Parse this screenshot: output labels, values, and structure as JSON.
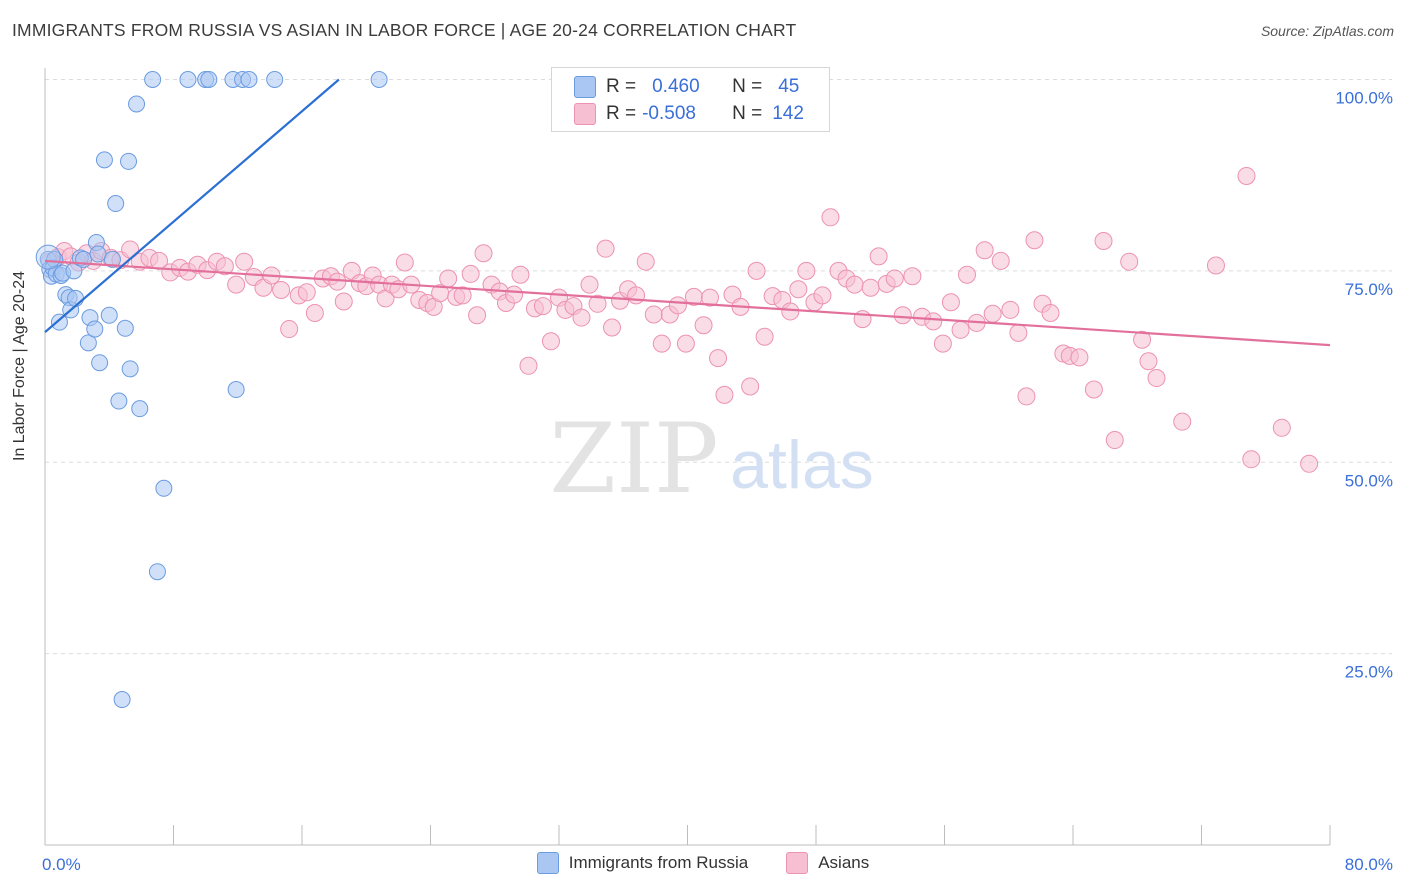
{
  "title": "IMMIGRANTS FROM RUSSIA VS ASIAN IN LABOR FORCE | AGE 20-24 CORRELATION CHART",
  "source": "Source: ZipAtlas.com",
  "watermark": {
    "zip": "ZIP",
    "atlas": "atlas"
  },
  "colors": {
    "blue_fill": "#a9c7f2",
    "blue_stroke": "#6a9be0",
    "blue_line": "#2a6fd4",
    "pink_fill": "#f6bfd2",
    "pink_stroke": "#ec92b2",
    "pink_line": "#e2709a",
    "axis_label": "#3a6fd8",
    "grid": "#dcdcdc"
  },
  "legend": {
    "r_label": "R =",
    "n_label": "N =",
    "rows": [
      {
        "series": "Immigrants from Russia",
        "r": "0.460",
        "n": "45",
        "color": "#a9c7f2",
        "stroke": "#6a9be0"
      },
      {
        "series": "Asians",
        "r": "-0.508",
        "n": "142",
        "color": "#f6bfd2",
        "stroke": "#ec92b2"
      }
    ]
  },
  "bottom_legend": [
    {
      "label": "Immigrants from Russia",
      "color": "#a9c7f2",
      "stroke": "#6a9be0"
    },
    {
      "label": "Asians",
      "color": "#f6bfd2",
      "stroke": "#ec92b2"
    }
  ],
  "chart_data": {
    "type": "scatter",
    "title": "IMMIGRANTS FROM RUSSIA VS ASIAN IN LABOR FORCE | AGE 20-24 CORRELATION CHART",
    "xlabel": "",
    "ylabel": "In Labor Force | Age 20-24",
    "xlim": [
      0,
      80
    ],
    "ylim": [
      0,
      102
    ],
    "x_tick_labels": [
      "0.0%",
      "80.0%"
    ],
    "y_ticks": [
      25,
      50,
      75,
      100
    ],
    "y_tick_labels": [
      "25.0%",
      "50.0%",
      "75.0%",
      "100.0%"
    ],
    "grid": true,
    "series": [
      {
        "name": "Immigrants from Russia",
        "color": "#a9c7f2",
        "trend": {
          "x": [
            0,
            18.3
          ],
          "y": [
            67,
            100
          ]
        },
        "points": [
          [
            0.2,
            76.5
          ],
          [
            0.3,
            75.2
          ],
          [
            0.4,
            74.3
          ],
          [
            0.5,
            75.4
          ],
          [
            0.6,
            76.5
          ],
          [
            0.7,
            74.6
          ],
          [
            0.9,
            68.3
          ],
          [
            1.0,
            74.4
          ],
          [
            1.1,
            74.7
          ],
          [
            1.3,
            71.9
          ],
          [
            1.5,
            71.5
          ],
          [
            1.6,
            69.9
          ],
          [
            1.8,
            75.0
          ],
          [
            1.9,
            71.4
          ],
          [
            2.2,
            76.7
          ],
          [
            2.4,
            76.5
          ],
          [
            2.7,
            65.6
          ],
          [
            2.8,
            68.9
          ],
          [
            3.1,
            67.4
          ],
          [
            3.2,
            78.7
          ],
          [
            3.3,
            77.2
          ],
          [
            3.4,
            63.0
          ],
          [
            3.7,
            89.5
          ],
          [
            4.0,
            69.2
          ],
          [
            4.2,
            76.5
          ],
          [
            4.4,
            83.8
          ],
          [
            4.6,
            58.0
          ],
          [
            4.8,
            19.0
          ],
          [
            5.0,
            67.5
          ],
          [
            5.2,
            89.3
          ],
          [
            5.3,
            62.2
          ],
          [
            5.7,
            96.8
          ],
          [
            5.9,
            57.0
          ],
          [
            6.7,
            100
          ],
          [
            7.0,
            35.7
          ],
          [
            7.4,
            46.6
          ],
          [
            8.9,
            100
          ],
          [
            10.0,
            100
          ],
          [
            10.2,
            100
          ],
          [
            11.9,
            59.5
          ],
          [
            11.7,
            100
          ],
          [
            12.3,
            100
          ],
          [
            12.7,
            100
          ],
          [
            14.3,
            100
          ],
          [
            20.8,
            100
          ]
        ]
      },
      {
        "name": "Asians",
        "color": "#f6bfd2",
        "trend": {
          "x": [
            0,
            80
          ],
          "y": [
            76.3,
            65.3
          ]
        },
        "points": [
          [
            0.3,
            76.2
          ],
          [
            0.8,
            76.8
          ],
          [
            1.2,
            77.6
          ],
          [
            1.6,
            76.9
          ],
          [
            2.1,
            76.1
          ],
          [
            2.6,
            77.3
          ],
          [
            3.0,
            76.3
          ],
          [
            3.5,
            77.6
          ],
          [
            4.1,
            76.7
          ],
          [
            4.7,
            76.4
          ],
          [
            5.3,
            77.8
          ],
          [
            5.9,
            76.2
          ],
          [
            6.5,
            76.7
          ],
          [
            7.1,
            76.3
          ],
          [
            7.8,
            74.8
          ],
          [
            8.4,
            75.4
          ],
          [
            8.9,
            74.9
          ],
          [
            9.5,
            75.8
          ],
          [
            10.1,
            75.1
          ],
          [
            10.7,
            76.2
          ],
          [
            11.2,
            75.6
          ],
          [
            11.9,
            73.2
          ],
          [
            12.4,
            76.2
          ],
          [
            13.0,
            74.2
          ],
          [
            13.6,
            72.8
          ],
          [
            14.1,
            74.4
          ],
          [
            14.7,
            72.5
          ],
          [
            15.2,
            67.4
          ],
          [
            15.8,
            71.8
          ],
          [
            16.3,
            72.2
          ],
          [
            16.8,
            69.5
          ],
          [
            17.3,
            74.0
          ],
          [
            17.8,
            74.3
          ],
          [
            18.2,
            73.6
          ],
          [
            18.6,
            71.0
          ],
          [
            19.1,
            75.0
          ],
          [
            19.6,
            73.4
          ],
          [
            20.0,
            73.0
          ],
          [
            20.4,
            74.4
          ],
          [
            20.8,
            73.2
          ],
          [
            21.2,
            71.4
          ],
          [
            21.6,
            73.2
          ],
          [
            22.0,
            72.6
          ],
          [
            22.4,
            76.1
          ],
          [
            22.8,
            73.2
          ],
          [
            23.3,
            71.2
          ],
          [
            23.8,
            70.8
          ],
          [
            24.2,
            70.3
          ],
          [
            24.6,
            72.1
          ],
          [
            25.1,
            74.0
          ],
          [
            25.6,
            71.6
          ],
          [
            26.0,
            71.8
          ],
          [
            26.5,
            74.6
          ],
          [
            26.9,
            69.2
          ],
          [
            27.3,
            77.3
          ],
          [
            27.8,
            73.2
          ],
          [
            28.3,
            72.3
          ],
          [
            28.7,
            70.8
          ],
          [
            29.2,
            71.9
          ],
          [
            29.6,
            74.5
          ],
          [
            30.1,
            62.6
          ],
          [
            30.5,
            70.1
          ],
          [
            31.0,
            70.4
          ],
          [
            31.5,
            65.8
          ],
          [
            32.0,
            71.5
          ],
          [
            32.4,
            69.9
          ],
          [
            32.9,
            70.4
          ],
          [
            33.4,
            68.9
          ],
          [
            33.9,
            73.2
          ],
          [
            34.4,
            70.7
          ],
          [
            34.9,
            77.9
          ],
          [
            35.3,
            67.6
          ],
          [
            35.8,
            71.1
          ],
          [
            36.3,
            72.6
          ],
          [
            36.8,
            71.8
          ],
          [
            37.4,
            76.2
          ],
          [
            37.9,
            69.3
          ],
          [
            38.4,
            65.5
          ],
          [
            38.9,
            69.3
          ],
          [
            39.4,
            70.5
          ],
          [
            39.9,
            65.5
          ],
          [
            40.4,
            71.6
          ],
          [
            41.0,
            67.9
          ],
          [
            41.4,
            71.5
          ],
          [
            41.9,
            63.6
          ],
          [
            42.3,
            58.8
          ],
          [
            42.8,
            71.9
          ],
          [
            43.3,
            70.3
          ],
          [
            43.9,
            59.9
          ],
          [
            44.3,
            75.0
          ],
          [
            44.8,
            66.4
          ],
          [
            45.3,
            71.7
          ],
          [
            45.9,
            71.2
          ],
          [
            46.4,
            69.7
          ],
          [
            46.9,
            72.6
          ],
          [
            47.4,
            75.0
          ],
          [
            47.9,
            70.9
          ],
          [
            48.4,
            71.8
          ],
          [
            48.9,
            82.0
          ],
          [
            49.4,
            75.0
          ],
          [
            49.9,
            74.0
          ],
          [
            50.4,
            73.2
          ],
          [
            50.9,
            68.7
          ],
          [
            51.4,
            72.8
          ],
          [
            51.9,
            76.9
          ],
          [
            52.4,
            73.3
          ],
          [
            52.9,
            74.0
          ],
          [
            53.4,
            69.2
          ],
          [
            54.0,
            74.3
          ],
          [
            54.6,
            69.0
          ],
          [
            55.3,
            68.4
          ],
          [
            55.9,
            65.5
          ],
          [
            56.4,
            70.9
          ],
          [
            57.0,
            67.3
          ],
          [
            57.4,
            74.5
          ],
          [
            58.0,
            68.2
          ],
          [
            58.5,
            77.7
          ],
          [
            59.0,
            69.4
          ],
          [
            59.5,
            76.3
          ],
          [
            60.1,
            69.9
          ],
          [
            60.6,
            66.9
          ],
          [
            61.1,
            58.6
          ],
          [
            61.6,
            79.0
          ],
          [
            62.1,
            70.7
          ],
          [
            62.6,
            69.5
          ],
          [
            63.4,
            64.2
          ],
          [
            63.8,
            63.9
          ],
          [
            64.4,
            63.7
          ],
          [
            65.3,
            59.5
          ],
          [
            65.9,
            78.9
          ],
          [
            66.6,
            52.9
          ],
          [
            67.5,
            76.2
          ],
          [
            68.3,
            66.0
          ],
          [
            68.7,
            63.2
          ],
          [
            69.2,
            61.0
          ],
          [
            70.8,
            55.3
          ],
          [
            72.9,
            75.7
          ],
          [
            74.8,
            87.4
          ],
          [
            75.1,
            50.4
          ],
          [
            77.0,
            54.5
          ],
          [
            78.7,
            49.8
          ]
        ]
      }
    ]
  }
}
